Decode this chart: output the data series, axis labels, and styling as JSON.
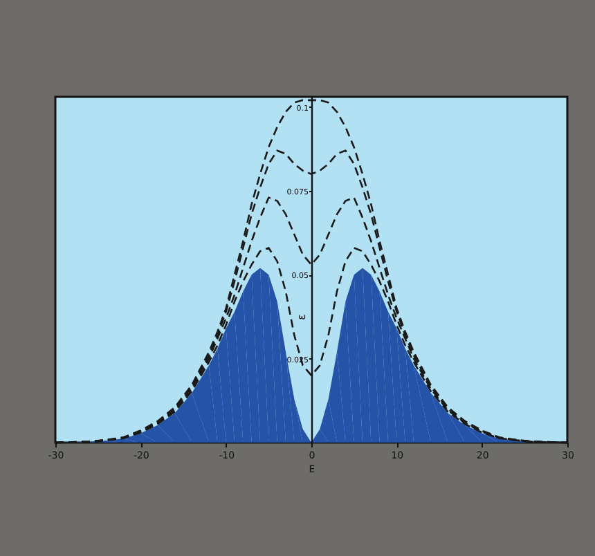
{
  "chart_data": {
    "type": "line",
    "xlabel": "E",
    "ylabel": "ε",
    "x": [
      -30,
      -26,
      -24,
      -22,
      -20,
      -18,
      -16,
      -14,
      -12,
      -11,
      -10,
      -9,
      -8,
      -7,
      -6,
      -5,
      -4,
      -3,
      -2,
      -1,
      0,
      1,
      2,
      3,
      4,
      5,
      6,
      7,
      8,
      9,
      10,
      11,
      12,
      14,
      16,
      18,
      20,
      22,
      24,
      26,
      30
    ],
    "xlim": [
      -30,
      30
    ],
    "xticks": [
      -30,
      -20,
      -10,
      0,
      10,
      20,
      30
    ],
    "ylim": [
      0,
      0.103
    ],
    "yticks": [
      0.025,
      0.05,
      0.075,
      0.1
    ],
    "line_style": "dashed",
    "marker": "none",
    "series": [
      {
        "type": "area",
        "color": "#2453a8",
        "values": [
          0,
          0.0002,
          0.0006,
          0.0012,
          0.0028,
          0.0052,
          0.0088,
          0.0148,
          0.023,
          0.028,
          0.034,
          0.039,
          0.045,
          0.05,
          0.052,
          0.05,
          0.042,
          0.027,
          0.013,
          0.004,
          0,
          0.004,
          0.013,
          0.027,
          0.042,
          0.05,
          0.052,
          0.05,
          0.045,
          0.039,
          0.034,
          0.028,
          0.023,
          0.0148,
          0.0088,
          0.0052,
          0.0028,
          0.0012,
          0.0006,
          0.0002,
          0
        ]
      },
      {
        "color": "#1a1a1a",
        "values": [
          0,
          0.0002,
          0.0007,
          0.0013,
          0.003,
          0.0055,
          0.0092,
          0.0153,
          0.024,
          0.029,
          0.035,
          0.042,
          0.048,
          0.053,
          0.057,
          0.058,
          0.054,
          0.045,
          0.032,
          0.023,
          0.02,
          0.023,
          0.032,
          0.045,
          0.054,
          0.058,
          0.057,
          0.053,
          0.048,
          0.042,
          0.035,
          0.029,
          0.024,
          0.0153,
          0.0092,
          0.0055,
          0.003,
          0.0013,
          0.0007,
          0.0002,
          0
        ]
      },
      {
        "color": "#1a1a1a",
        "values": [
          0,
          0.0002,
          0.0007,
          0.0014,
          0.0032,
          0.0058,
          0.0096,
          0.016,
          0.025,
          0.031,
          0.037,
          0.044,
          0.052,
          0.06,
          0.067,
          0.073,
          0.072,
          0.068,
          0.062,
          0.056,
          0.053,
          0.056,
          0.062,
          0.068,
          0.072,
          0.073,
          0.067,
          0.06,
          0.052,
          0.044,
          0.037,
          0.031,
          0.025,
          0.016,
          0.0096,
          0.0058,
          0.0032,
          0.0014,
          0.0007,
          0.0002,
          0
        ]
      },
      {
        "color": "#1a1a1a",
        "values": [
          0,
          0.0003,
          0.0008,
          0.0015,
          0.0034,
          0.0061,
          0.01,
          0.0166,
          0.026,
          0.032,
          0.039,
          0.048,
          0.058,
          0.068,
          0.076,
          0.083,
          0.087,
          0.086,
          0.083,
          0.081,
          0.08,
          0.081,
          0.083,
          0.086,
          0.087,
          0.083,
          0.076,
          0.068,
          0.058,
          0.048,
          0.039,
          0.032,
          0.026,
          0.0166,
          0.01,
          0.0061,
          0.0034,
          0.0015,
          0.0008,
          0.0003,
          0
        ]
      },
      {
        "color": "#1a1a1a",
        "values": [
          0,
          0.0003,
          0.0008,
          0.0016,
          0.0036,
          0.0064,
          0.0105,
          0.0172,
          0.027,
          0.033,
          0.04,
          0.05,
          0.06,
          0.071,
          0.08,
          0.088,
          0.094,
          0.0985,
          0.1013,
          0.102,
          0.102,
          0.102,
          0.1013,
          0.0985,
          0.094,
          0.088,
          0.08,
          0.071,
          0.06,
          0.05,
          0.04,
          0.033,
          0.027,
          0.0172,
          0.0105,
          0.0064,
          0.0036,
          0.0016,
          0.0008,
          0.0003,
          0
        ]
      }
    ]
  }
}
